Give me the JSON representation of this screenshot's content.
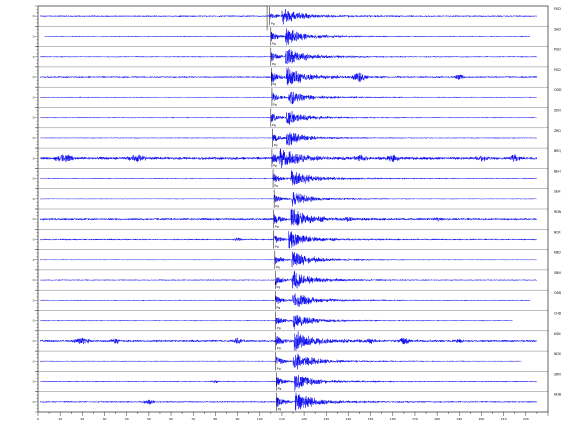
{
  "chart_data": {
    "type": "line",
    "title": "",
    "xlabel": "",
    "ylabel": "",
    "grid": false,
    "colors": {
      "trace": "#0000ee",
      "axis": "#000000",
      "pick": "#000000"
    },
    "x_range": [
      0,
      230
    ],
    "x_tick_step": 10,
    "x_tick_labels": [
      "0",
      "10",
      "20",
      "30",
      "40",
      "50",
      "60",
      "70",
      "80",
      "90",
      "100",
      "110",
      "120",
      "130",
      "140",
      "150",
      "160",
      "170",
      "180",
      "190",
      "200",
      "210",
      "220"
    ],
    "traces": [
      {
        "station": "PGD",
        "pick": "Pg",
        "p_time": 104.5,
        "s_time": 110.0,
        "amp": 0.55,
        "coda": 0.9,
        "noise": 0.08,
        "bursts": [],
        "extent": [
          1,
          225
        ]
      },
      {
        "station": "SHD",
        "pick": "Pg",
        "p_time": 105.0,
        "s_time": 111.5,
        "amp": 0.85,
        "coda": 0.9,
        "noise": 0.05,
        "bursts": [],
        "extent": [
          3,
          222
        ]
      },
      {
        "station": "PGD",
        "pick": "Pg",
        "p_time": 105.0,
        "s_time": 111.5,
        "amp": 0.95,
        "coda": 1.0,
        "noise": 0.06,
        "bursts": [],
        "extent": [
          1,
          225
        ]
      },
      {
        "station": "PUD",
        "pick": "Pg",
        "p_time": 105.2,
        "s_time": 112.0,
        "amp": 1.0,
        "coda": 1.1,
        "noise": 0.09,
        "bursts": [
          [
            145,
            4,
            0.6
          ],
          [
            190,
            3,
            0.3
          ]
        ],
        "extent": [
          1,
          225
        ]
      },
      {
        "station": "ODD",
        "pick": "Pg",
        "p_time": 105.5,
        "s_time": 113.0,
        "amp": 0.9,
        "coda": 0.8,
        "noise": 0.05,
        "bursts": [],
        "extent": [
          1,
          225
        ]
      },
      {
        "station": "ZEN",
        "pick": "Pg",
        "p_time": 105.0,
        "s_time": 112.0,
        "amp": 0.85,
        "coda": 0.8,
        "noise": 0.05,
        "bursts": [],
        "extent": [
          1,
          225
        ]
      },
      {
        "station": "ZRD",
        "pick": "Pg",
        "p_time": 105.8,
        "s_time": 112.0,
        "amp": 0.85,
        "coda": 0.8,
        "noise": 0.05,
        "bursts": [],
        "extent": [
          1,
          225
        ]
      },
      {
        "station": "BRQ",
        "pick": "Pg",
        "p_time": 105.5,
        "s_time": 109.0,
        "amp": 1.0,
        "coda": 1.2,
        "noise": 0.15,
        "bursts": [
          [
            12,
            6,
            0.4
          ],
          [
            45,
            6,
            0.35
          ],
          [
            145,
            4,
            0.3
          ],
          [
            160,
            5,
            0.35
          ],
          [
            200,
            4,
            0.3
          ],
          [
            215,
            3,
            0.4
          ]
        ],
        "extent": [
          1,
          225
        ]
      },
      {
        "station": "BEH",
        "pick": "Pg",
        "p_time": 106.0,
        "s_time": 114.0,
        "amp": 0.9,
        "coda": 1.0,
        "noise": 0.05,
        "bursts": [],
        "extent": [
          1,
          225
        ]
      },
      {
        "station": "SEH",
        "pick": "Pg",
        "p_time": 106.5,
        "s_time": 114.5,
        "amp": 0.7,
        "coda": 0.8,
        "noise": 0.04,
        "bursts": [],
        "extent": [
          1,
          225
        ]
      },
      {
        "station": "RDN",
        "pick": "Pg",
        "p_time": 106.3,
        "s_time": 114.0,
        "amp": 1.0,
        "coda": 1.1,
        "noise": 0.12,
        "bursts": [
          [
            140,
            3,
            0.2
          ],
          [
            180,
            3,
            0.2
          ]
        ],
        "extent": [
          1,
          225
        ]
      },
      {
        "station": "BCR",
        "pick": "Pg",
        "p_time": 106.3,
        "s_time": 113.0,
        "amp": 0.85,
        "coda": 0.9,
        "noise": 0.08,
        "bursts": [
          [
            90,
            4,
            0.15
          ]
        ],
        "extent": [
          1,
          225
        ]
      },
      {
        "station": "KBD",
        "pick": "Pg",
        "p_time": 106.8,
        "s_time": 114.5,
        "amp": 0.85,
        "coda": 0.9,
        "noise": 0.04,
        "bursts": [],
        "extent": [
          1,
          225
        ]
      },
      {
        "station": "SBN",
        "pick": "Pg",
        "p_time": 107.0,
        "s_time": 114.5,
        "amp": 0.95,
        "coda": 1.0,
        "noise": 0.06,
        "bursts": [],
        "extent": [
          1,
          225
        ]
      },
      {
        "station": "OBD",
        "pick": "Pg",
        "p_time": 107.0,
        "s_time": 114.8,
        "amp": 0.9,
        "coda": 0.9,
        "noise": 0.05,
        "bursts": [],
        "extent": [
          1,
          222
        ]
      },
      {
        "station": "CHD",
        "pick": "Pg",
        "p_time": 107.2,
        "s_time": 115.0,
        "amp": 0.85,
        "coda": 0.8,
        "noise": 0.05,
        "bursts": [],
        "extent": [
          1,
          214
        ]
      },
      {
        "station": "KSN",
        "pick": "Pg",
        "p_time": 107.2,
        "s_time": 115.5,
        "amp": 1.0,
        "coda": 1.2,
        "noise": 0.12,
        "bursts": [
          [
            20,
            6,
            0.3
          ],
          [
            35,
            4,
            0.25
          ],
          [
            90,
            4,
            0.3
          ],
          [
            150,
            3,
            0.25
          ],
          [
            165,
            4,
            0.35
          ],
          [
            190,
            3,
            0.2
          ]
        ],
        "extent": [
          1,
          225
        ]
      },
      {
        "station": "NDS",
        "pick": "Pg",
        "p_time": 107.2,
        "s_time": 115.0,
        "amp": 0.95,
        "coda": 1.0,
        "noise": 0.05,
        "bursts": [],
        "extent": [
          1,
          218
        ]
      },
      {
        "station": "SRN",
        "pick": "Pg",
        "p_time": 107.5,
        "s_time": 115.5,
        "amp": 0.85,
        "coda": 0.9,
        "noise": 0.06,
        "bursts": [
          [
            80,
            3,
            0.15
          ]
        ],
        "extent": [
          1,
          225
        ]
      },
      {
        "station": "HDB",
        "pick": "Pg",
        "p_time": 107.5,
        "s_time": 116.0,
        "amp": 1.0,
        "coda": 1.1,
        "noise": 0.08,
        "bursts": [
          [
            50,
            4,
            0.25
          ]
        ],
        "extent": [
          1,
          225
        ]
      }
    ]
  }
}
